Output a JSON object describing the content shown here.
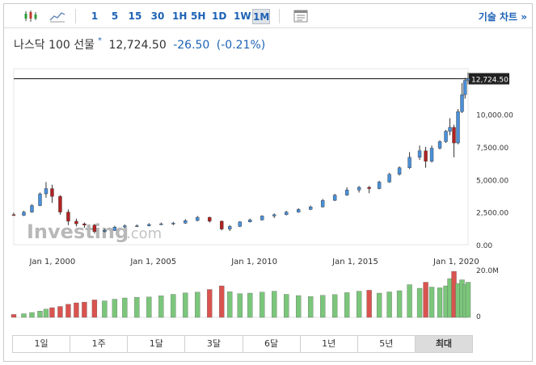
{
  "toolbar": {
    "chart_type_icon": "candlestick-icon",
    "line_icon": "line-chart-icon",
    "timeframes": [
      "1",
      "5",
      "15",
      "30",
      "1H",
      "5H",
      "1D",
      "1W",
      "1M"
    ],
    "active_timeframe": "1M",
    "settings_icon": "chart-settings-icon",
    "tech_chart_label": "기술 차트 »"
  },
  "quote": {
    "name": "나스닥 100 선물",
    "marker": "*",
    "price": "12,724.50",
    "change": "-26.50",
    "change_pct": "(-0.21%)"
  },
  "chart": {
    "last_price_label": "12,724.50",
    "y_ticks": [
      "10,000.00",
      "7,500.00",
      "5,000.00",
      "2,500.00",
      "0.00"
    ],
    "x_ticks": [
      "Jan 1, 2000",
      "Jan 1, 2005",
      "Jan 1, 2010",
      "Jan 1, 2015",
      "Jan 1, 2020"
    ],
    "volume_ticks": [
      "20.0M",
      "0"
    ],
    "watermark": "Investing",
    "watermark_suffix": ".com",
    "colors": {
      "up": "#4a90d9",
      "down": "#b22222",
      "vol_up": "#7bc67b",
      "vol_down": "#d9534f",
      "grid": "#e0e0e0",
      "axis_text": "#333333"
    }
  },
  "chart_data": {
    "type": "candlestick",
    "series_note": "monthly OHLC, approximate",
    "ylim": [
      0,
      13500
    ],
    "candles": [
      [
        1998.5,
        2300,
        2250,
        2450,
        2200
      ],
      [
        1999.0,
        2250,
        2500,
        2600,
        2200
      ],
      [
        1999.4,
        2500,
        3000,
        3100,
        2450
      ],
      [
        1999.8,
        3000,
        3900,
        4000,
        2950
      ],
      [
        2000.1,
        3900,
        4300,
        4800,
        3600
      ],
      [
        2000.4,
        4300,
        3700,
        4600,
        3200
      ],
      [
        2000.8,
        3700,
        2500,
        3800,
        2300
      ],
      [
        2001.2,
        2500,
        1800,
        2700,
        1500
      ],
      [
        2001.6,
        1800,
        1600,
        2000,
        1400
      ],
      [
        2002.0,
        1600,
        1500,
        1700,
        1300
      ],
      [
        2002.5,
        1500,
        1000,
        1600,
        850
      ],
      [
        2003.0,
        1000,
        1100,
        1200,
        950
      ],
      [
        2003.5,
        1100,
        1350,
        1450,
        1050
      ],
      [
        2004.0,
        1350,
        1450,
        1550,
        1300
      ],
      [
        2004.6,
        1450,
        1450,
        1550,
        1350
      ],
      [
        2005.2,
        1450,
        1550,
        1650,
        1400
      ],
      [
        2005.8,
        1550,
        1600,
        1700,
        1500
      ],
      [
        2006.4,
        1600,
        1650,
        1750,
        1500
      ],
      [
        2007.0,
        1650,
        1850,
        1950,
        1600
      ],
      [
        2007.6,
        1850,
        2100,
        2200,
        1800
      ],
      [
        2008.2,
        2100,
        1800,
        2150,
        1700
      ],
      [
        2008.8,
        1800,
        1200,
        1850,
        1100
      ],
      [
        2009.2,
        1200,
        1400,
        1500,
        1050
      ],
      [
        2009.7,
        1400,
        1750,
        1800,
        1350
      ],
      [
        2010.2,
        1750,
        1900,
        2000,
        1700
      ],
      [
        2010.8,
        1900,
        2200,
        2250,
        1850
      ],
      [
        2011.4,
        2200,
        2300,
        2400,
        2050
      ],
      [
        2012.0,
        2300,
        2500,
        2600,
        2250
      ],
      [
        2012.6,
        2500,
        2700,
        2800,
        2450
      ],
      [
        2013.2,
        2700,
        2900,
        3000,
        2650
      ],
      [
        2013.8,
        2900,
        3400,
        3500,
        2850
      ],
      [
        2014.4,
        3400,
        3800,
        3900,
        3350
      ],
      [
        2015.0,
        3800,
        4200,
        4400,
        3750
      ],
      [
        2015.6,
        4200,
        4400,
        4500,
        4000
      ],
      [
        2016.1,
        4400,
        4300,
        4500,
        3950
      ],
      [
        2016.6,
        4300,
        4800,
        4900,
        4250
      ],
      [
        2017.1,
        4800,
        5400,
        5500,
        4750
      ],
      [
        2017.6,
        5400,
        5900,
        6000,
        5300
      ],
      [
        2018.1,
        5900,
        6700,
        7100,
        5800
      ],
      [
        2018.6,
        6700,
        7200,
        7600,
        6500
      ],
      [
        2018.9,
        7200,
        6400,
        7500,
        5900
      ],
      [
        2019.2,
        6400,
        7400,
        7600,
        6300
      ],
      [
        2019.6,
        7400,
        7900,
        8000,
        7300
      ],
      [
        2019.9,
        7900,
        8700,
        8800,
        7800
      ],
      [
        2020.1,
        8700,
        9000,
        9700,
        8400
      ],
      [
        2020.3,
        9000,
        7800,
        9200,
        6700
      ],
      [
        2020.5,
        7800,
        10200,
        10400,
        7700
      ],
      [
        2020.7,
        10200,
        11500,
        12400,
        10100
      ],
      [
        2020.85,
        11500,
        12600,
        12800,
        11200
      ],
      [
        2021.0,
        12600,
        12724,
        13200,
        12300
      ]
    ],
    "volume": [
      [
        1998.5,
        1.2
      ],
      [
        1999.0,
        1.5
      ],
      [
        1999.4,
        2.0
      ],
      [
        1999.8,
        2.6
      ],
      [
        2000.1,
        3.4
      ],
      [
        2000.4,
        4.0
      ],
      [
        2000.8,
        4.5
      ],
      [
        2001.2,
        5.4
      ],
      [
        2001.6,
        6.0
      ],
      [
        2002.0,
        6.3
      ],
      [
        2002.5,
        7.2
      ],
      [
        2003.0,
        6.8
      ],
      [
        2003.5,
        7.5
      ],
      [
        2004.0,
        8.0
      ],
      [
        2004.6,
        8.3
      ],
      [
        2005.2,
        8.4
      ],
      [
        2005.8,
        8.9
      ],
      [
        2006.4,
        9.5
      ],
      [
        2007.0,
        10.1
      ],
      [
        2007.6,
        10.4
      ],
      [
        2008.2,
        11.5
      ],
      [
        2008.8,
        13.0
      ],
      [
        2009.2,
        10.6
      ],
      [
        2009.7,
        9.8
      ],
      [
        2010.2,
        10.0
      ],
      [
        2010.8,
        10.4
      ],
      [
        2011.4,
        10.8
      ],
      [
        2012.0,
        9.5
      ],
      [
        2012.6,
        9.0
      ],
      [
        2013.2,
        8.6
      ],
      [
        2013.8,
        9.1
      ],
      [
        2014.4,
        9.4
      ],
      [
        2015.0,
        10.2
      ],
      [
        2015.6,
        10.8
      ],
      [
        2016.1,
        11.2
      ],
      [
        2016.6,
        10.0
      ],
      [
        2017.1,
        10.5
      ],
      [
        2017.6,
        11.0
      ],
      [
        2018.1,
        13.5
      ],
      [
        2018.6,
        12.0
      ],
      [
        2018.9,
        14.5
      ],
      [
        2019.2,
        12.5
      ],
      [
        2019.6,
        12.2
      ],
      [
        2019.9,
        13.0
      ],
      [
        2020.1,
        16.0
      ],
      [
        2020.3,
        19.0
      ],
      [
        2020.5,
        14.0
      ],
      [
        2020.7,
        15.5
      ],
      [
        2020.85,
        13.5
      ],
      [
        2021.0,
        14.5
      ]
    ]
  },
  "periods": [
    "1일",
    "1주",
    "1달",
    "3달",
    "6달",
    "1년",
    "5년",
    "최대"
  ],
  "active_period": "최대"
}
